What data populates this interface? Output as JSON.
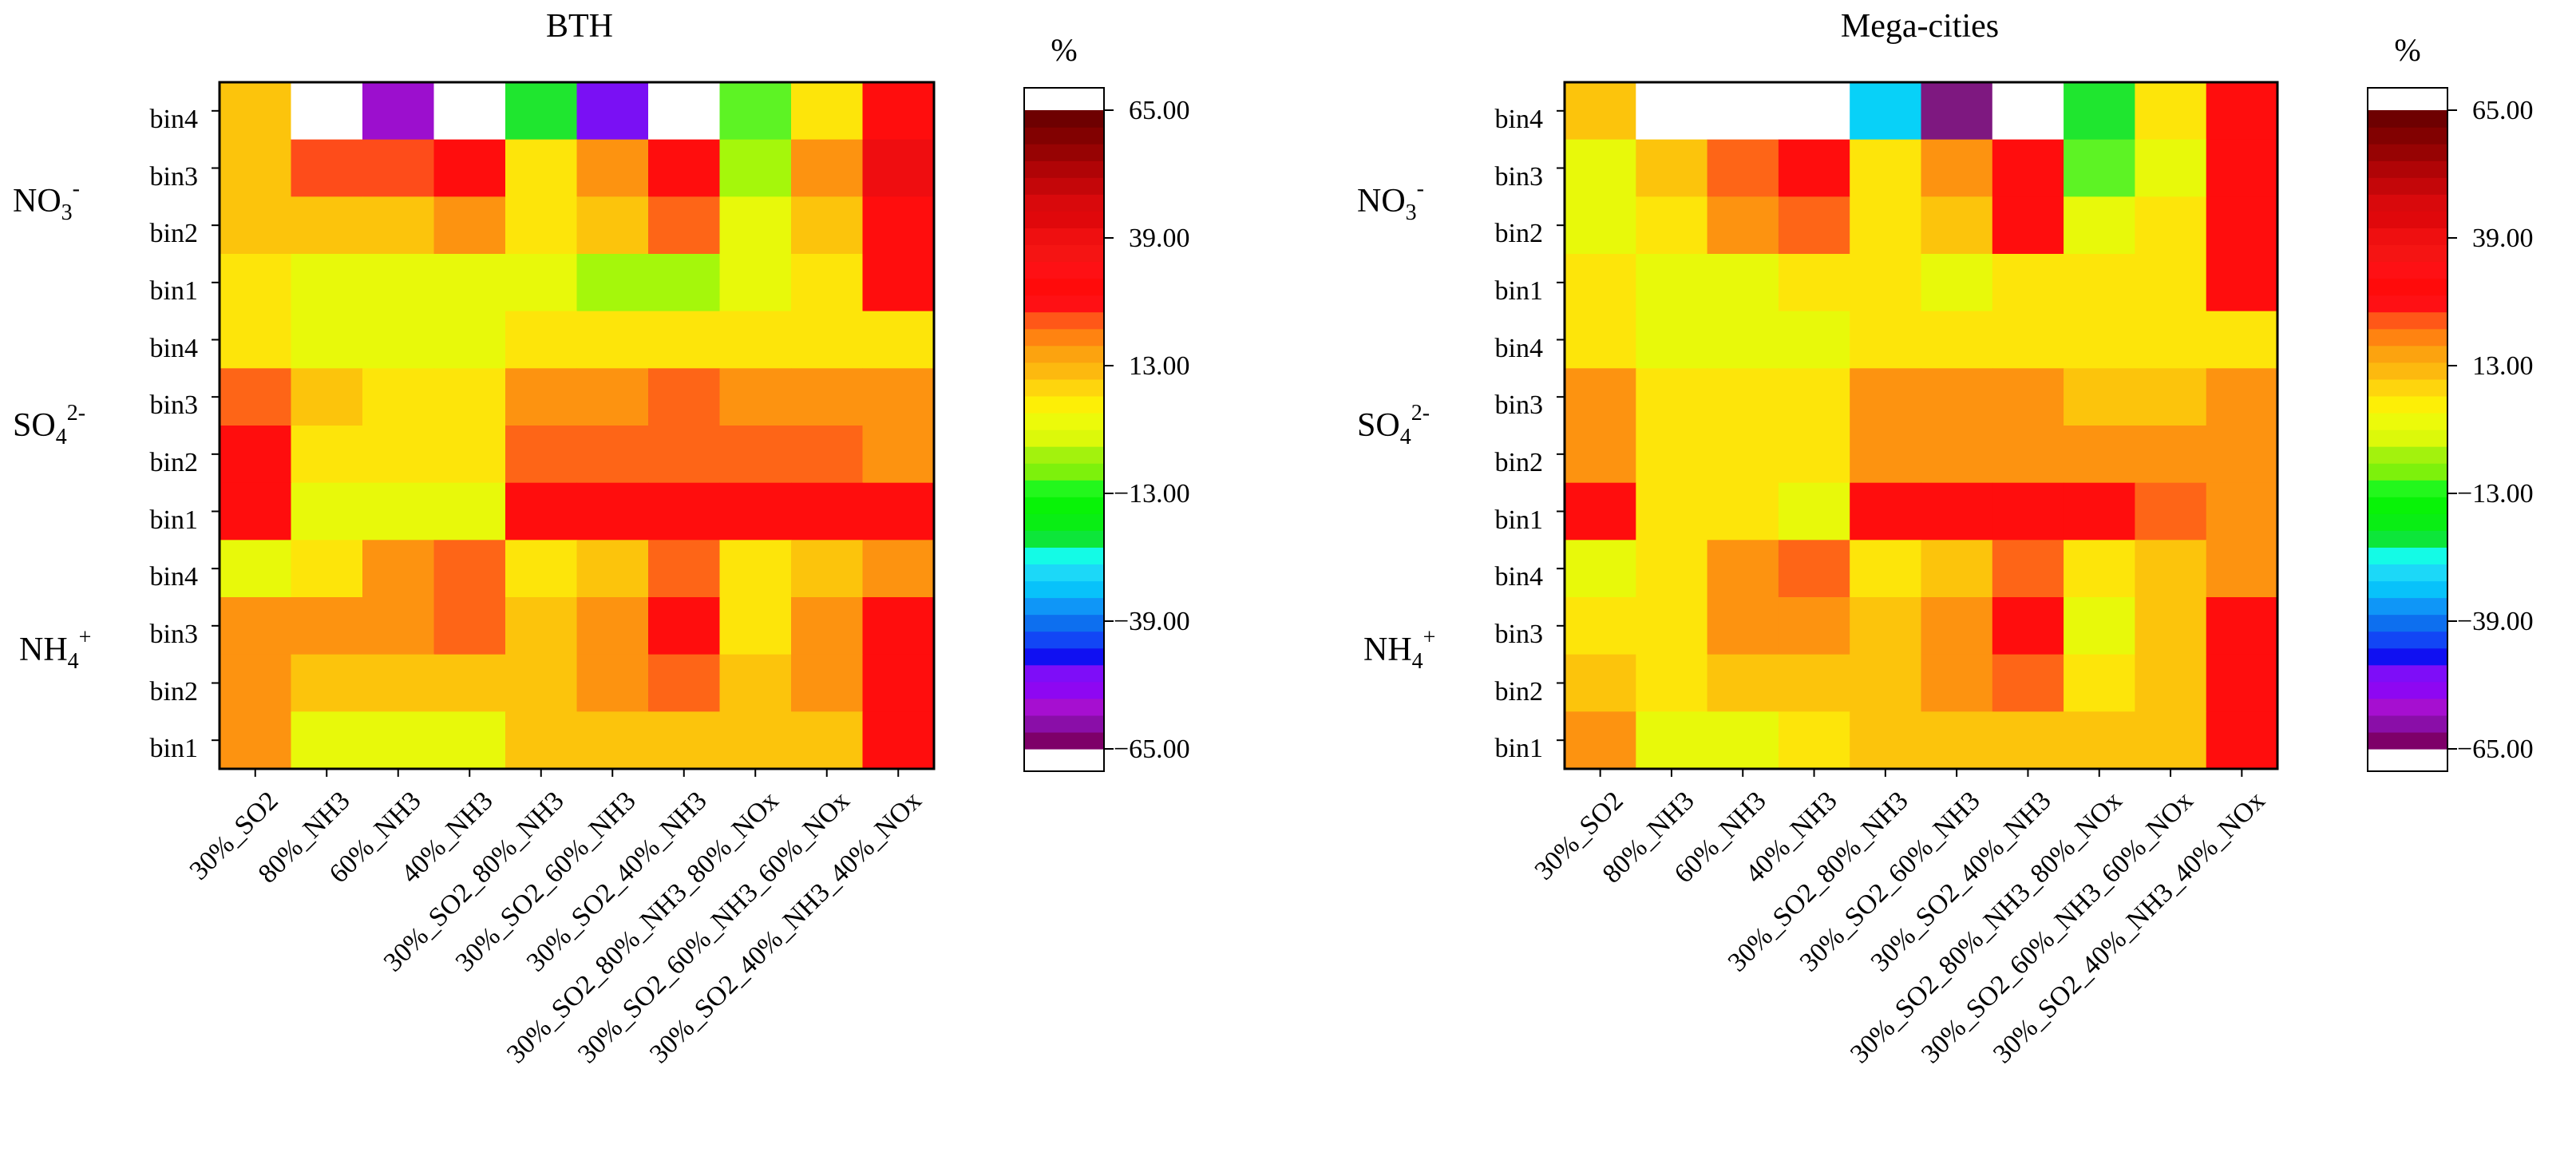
{
  "figure_colors": {
    "scale": [
      "#7e0069",
      "#8a0ea8",
      "#a60fd0",
      "#8e07f2",
      "#7e0df8",
      "#1010f2",
      "#1246f5",
      "#0d6fef",
      "#0f96f7",
      "#08c2fa",
      "#1cd8f8",
      "#14fbe6",
      "#0de63a",
      "#09ee14",
      "#08f307",
      "#23f71c",
      "#7df10c",
      "#a3f20d",
      "#dcf90a",
      "#ecfa0a",
      "#fdef06",
      "#fed50d",
      "#fdb90f",
      "#fca30f",
      "#ff8311",
      "#ff5718",
      "#ff1014",
      "#ff0b0b",
      "#fe1014",
      "#f51413",
      "#ef0f10",
      "#e0080b",
      "#d9090c",
      "#c40609",
      "#b00406",
      "#970303",
      "#820101",
      "#6e0001"
    ],
    "code": {
      "W": "#ffffff",
      "P": "#9c0fce",
      "V": "#7a10f4",
      "G": "#1fe62f",
      "LG": "#5df324",
      "YG": "#a5f70b",
      "GY": "#e8f90a",
      "Y": "#fde50a",
      "YO": "#fcc40c",
      "O": "#fd9310",
      "DO": "#fe6517",
      "OR": "#fe4c1a",
      "R": "#ff0d0d",
      "DR": "#ef0d10",
      "C": "#08d1f8",
      "M": "#7e1880"
    }
  },
  "chart_data": [
    {
      "type": "heatmap",
      "title": "BTH",
      "categories": [
        "30%_SO2",
        "80%_NH3",
        "60%_NH3",
        "40%_NH3",
        "30%_SO2_80%_NH3",
        "30%_SO2_60%_NH3",
        "30%_SO2_40%_NH3",
        "30%_SO2_80%_NH3_80%_NOx",
        "30%_SO2_60%_NH3_60%_NOx",
        "30%_SO2_40%_NH3_40%_NOx"
      ],
      "rows": [
        "bin4",
        "bin3",
        "bin2",
        "bin1",
        "bin4",
        "bin3",
        "bin2",
        "bin1",
        "bin4",
        "bin3",
        "bin2",
        "bin1"
      ],
      "groups": [
        {
          "label": "NO",
          "sub": "3",
          "sup": "-"
        },
        {
          "label": "SO",
          "sub": "4",
          "sup": "2-"
        },
        {
          "label": "NH",
          "sub": "4",
          "sup": "+"
        }
      ],
      "cells": [
        [
          "YO",
          "W",
          "P",
          "W",
          "G",
          "V",
          "W",
          "LG",
          "Y",
          "R"
        ],
        [
          "YO",
          "OR",
          "OR",
          "R",
          "Y",
          "O",
          "R",
          "YG",
          "O",
          "DR"
        ],
        [
          "YO",
          "YO",
          "YO",
          "O",
          "Y",
          "YO",
          "DO",
          "GY",
          "YO",
          "R"
        ],
        [
          "Y",
          "GY",
          "GY",
          "GY",
          "GY",
          "YG",
          "YG",
          "GY",
          "Y",
          "R"
        ],
        [
          "Y",
          "GY",
          "GY",
          "GY",
          "Y",
          "Y",
          "Y",
          "Y",
          "Y",
          "Y"
        ],
        [
          "DO",
          "YO",
          "Y",
          "Y",
          "O",
          "O",
          "DO",
          "O",
          "O",
          "O"
        ],
        [
          "R",
          "Y",
          "Y",
          "Y",
          "DO",
          "DO",
          "DO",
          "DO",
          "DO",
          "O"
        ],
        [
          "R",
          "GY",
          "GY",
          "GY",
          "R",
          "R",
          "R",
          "R",
          "R",
          "R"
        ],
        [
          "GY",
          "Y",
          "O",
          "DO",
          "Y",
          "YO",
          "DO",
          "Y",
          "YO",
          "O"
        ],
        [
          "O",
          "O",
          "O",
          "DO",
          "YO",
          "O",
          "R",
          "Y",
          "O",
          "R"
        ],
        [
          "O",
          "YO",
          "YO",
          "YO",
          "YO",
          "O",
          "DO",
          "YO",
          "O",
          "R"
        ],
        [
          "O",
          "GY",
          "GY",
          "GY",
          "YO",
          "YO",
          "YO",
          "YO",
          "YO",
          "R"
        ]
      ],
      "colorbar": {
        "label": "%",
        "ticks": [
          "65.00",
          "39.00",
          "13.00",
          "−13.00",
          "−39.00",
          "−65.00"
        ]
      }
    },
    {
      "type": "heatmap",
      "title": "Mega-cities",
      "categories": [
        "30%_SO2",
        "80%_NH3",
        "60%_NH3",
        "40%_NH3",
        "30%_SO2_80%_NH3",
        "30%_SO2_60%_NH3",
        "30%_SO2_40%_NH3",
        "30%_SO2_80%_NH3_80%_NOx",
        "30%_SO2_60%_NH3_60%_NOx",
        "30%_SO2_40%_NH3_40%_NOx"
      ],
      "rows": [
        "bin4",
        "bin3",
        "bin2",
        "bin1",
        "bin4",
        "bin3",
        "bin2",
        "bin1",
        "bin4",
        "bin3",
        "bin2",
        "bin1"
      ],
      "groups": [
        {
          "label": "NO",
          "sub": "3",
          "sup": "-"
        },
        {
          "label": "SO",
          "sub": "4",
          "sup": "2-"
        },
        {
          "label": "NH",
          "sub": "4",
          "sup": "+"
        }
      ],
      "cells": [
        [
          "YO",
          "W",
          "W",
          "W",
          "C",
          "M",
          "W",
          "G",
          "Y",
          "R"
        ],
        [
          "GY",
          "YO",
          "DO",
          "R",
          "Y",
          "O",
          "R",
          "LG",
          "GY",
          "R"
        ],
        [
          "GY",
          "Y",
          "O",
          "DO",
          "Y",
          "YO",
          "R",
          "GY",
          "Y",
          "R"
        ],
        [
          "Y",
          "GY",
          "GY",
          "Y",
          "Y",
          "GY",
          "Y",
          "Y",
          "Y",
          "R"
        ],
        [
          "Y",
          "GY",
          "GY",
          "GY",
          "Y",
          "Y",
          "Y",
          "Y",
          "Y",
          "Y"
        ],
        [
          "O",
          "Y",
          "Y",
          "Y",
          "O",
          "O",
          "O",
          "YO",
          "YO",
          "O"
        ],
        [
          "O",
          "Y",
          "Y",
          "Y",
          "O",
          "O",
          "O",
          "O",
          "O",
          "O"
        ],
        [
          "R",
          "Y",
          "Y",
          "GY",
          "R",
          "R",
          "R",
          "R",
          "DO",
          "O"
        ],
        [
          "GY",
          "Y",
          "O",
          "DO",
          "Y",
          "YO",
          "DO",
          "Y",
          "YO",
          "O"
        ],
        [
          "Y",
          "Y",
          "O",
          "O",
          "YO",
          "O",
          "R",
          "GY",
          "YO",
          "R"
        ],
        [
          "YO",
          "Y",
          "YO",
          "YO",
          "YO",
          "O",
          "DO",
          "Y",
          "YO",
          "R"
        ],
        [
          "O",
          "GY",
          "GY",
          "Y",
          "YO",
          "YO",
          "YO",
          "YO",
          "YO",
          "R"
        ]
      ],
      "colorbar": {
        "label": "%",
        "ticks": [
          "65.00",
          "39.00",
          "13.00",
          "−13.00",
          "−39.00",
          "−65.00"
        ]
      }
    }
  ]
}
